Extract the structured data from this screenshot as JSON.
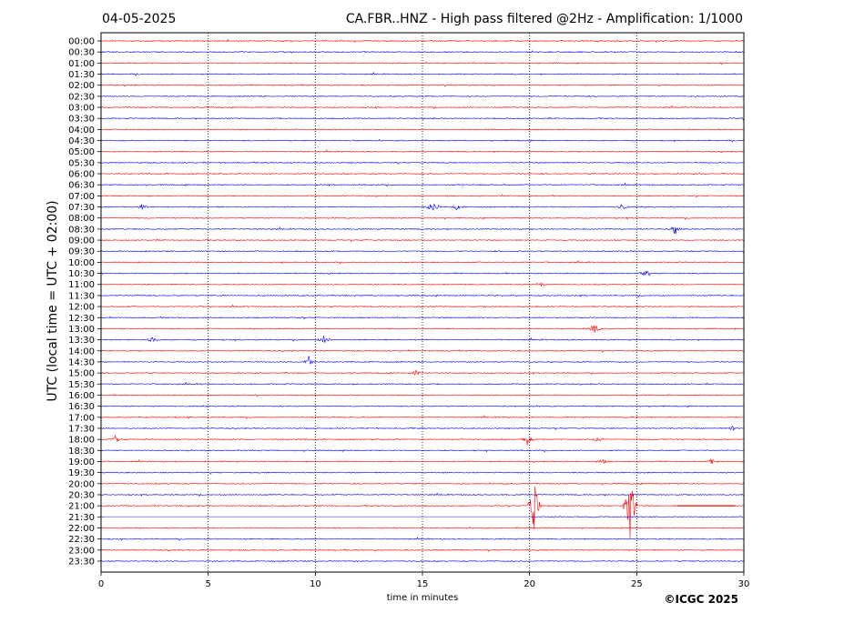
{
  "header": {
    "date": "04-05-2025",
    "title": "CA.FBR..HNZ - High pass filtered @2Hz - Amplification: 1/1000"
  },
  "footer": {
    "copyright": "©ICGC 2025"
  },
  "colors": {
    "red_trace": "#ff0000",
    "blue_trace": "#0000ff",
    "frame": "#000000"
  },
  "chart_data": {
    "type": "line",
    "title": "CA.FBR..HNZ - High pass filtered @2Hz - Amplification: 1/1000",
    "xlabel": "time in minutes",
    "ylabel": "UTC (local time = UTC + 02:00)",
    "xlim": [
      0,
      30
    ],
    "x_ticks": [
      "0",
      "5",
      "10",
      "15",
      "20",
      "25",
      "30"
    ],
    "x_gridlines_dotted": [
      5,
      10,
      15,
      20,
      25
    ],
    "row_colors": "alternating red/blue starting with red at 00:00",
    "rows": [
      "00:00",
      "00:30",
      "01:00",
      "01:30",
      "02:00",
      "02:30",
      "03:00",
      "03:30",
      "04:00",
      "04:30",
      "05:00",
      "05:30",
      "06:00",
      "06:30",
      "07:00",
      "07:30",
      "08:00",
      "08:30",
      "09:00",
      "09:30",
      "10:00",
      "10:30",
      "11:00",
      "11:30",
      "12:00",
      "12:30",
      "13:00",
      "13:30",
      "14:00",
      "14:30",
      "15:00",
      "15:30",
      "16:00",
      "16:30",
      "17:00",
      "17:30",
      "18:00",
      "18:30",
      "19:00",
      "19:30",
      "20:00",
      "20:30",
      "21:00",
      "21:30",
      "22:00",
      "22:30",
      "23:00",
      "23:30"
    ],
    "events": [
      {
        "row": "07:30",
        "minute": 15.5,
        "amplitude": 1.8
      },
      {
        "row": "07:30",
        "minute": 1.9,
        "amplitude": 0.6
      },
      {
        "row": "07:30",
        "minute": 16.6,
        "amplitude": 0.6
      },
      {
        "row": "07:30",
        "minute": 24.3,
        "amplitude": 0.7
      },
      {
        "row": "08:30",
        "minute": 26.8,
        "amplitude": 1.0
      },
      {
        "row": "10:30",
        "minute": 25.4,
        "amplitude": 0.7
      },
      {
        "row": "11:00",
        "minute": 20.5,
        "amplitude": 0.5
      },
      {
        "row": "13:00",
        "minute": 23.0,
        "amplitude": 1.3
      },
      {
        "row": "13:30",
        "minute": 10.4,
        "amplitude": 0.9
      },
      {
        "row": "13:30",
        "minute": 2.4,
        "amplitude": 0.6
      },
      {
        "row": "14:30",
        "minute": 9.7,
        "amplitude": 1.5
      },
      {
        "row": "15:00",
        "minute": 14.7,
        "amplitude": 0.5
      },
      {
        "row": "17:30",
        "minute": 29.5,
        "amplitude": 0.5
      },
      {
        "row": "18:00",
        "minute": 0.7,
        "amplitude": 1.0
      },
      {
        "row": "18:00",
        "minute": 19.9,
        "amplitude": 1.1
      },
      {
        "row": "18:00",
        "minute": 23.2,
        "amplitude": 0.8
      },
      {
        "row": "19:00",
        "minute": 23.4,
        "amplitude": 0.5
      },
      {
        "row": "19:00",
        "minute": 28.5,
        "amplitude": 0.5
      },
      {
        "row": "21:00",
        "minute": 20.2,
        "amplitude": 8.0
      },
      {
        "row": "21:00",
        "minute": 24.7,
        "amplitude": 8.5
      }
    ],
    "segments": [
      {
        "row": "21:00",
        "from": 26.9,
        "to": 29.6,
        "type": "flat"
      },
      {
        "row": "21:30",
        "from": 0.1,
        "to": 20.1,
        "type": "flat-light"
      }
    ]
  }
}
